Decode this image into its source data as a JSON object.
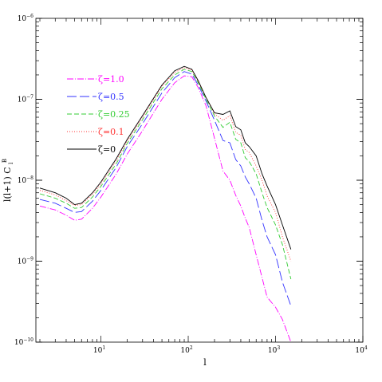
{
  "chart_data": {
    "type": "line",
    "title": "",
    "xlabel": "l",
    "ylabel": "l(l+1) C_l^B",
    "ylabel_parts": {
      "main": "l(l+1) C",
      "sub": "l",
      "sup": "B"
    },
    "x_scale": "log",
    "y_scale": "log",
    "xlim": [
      1.8,
      10000
    ],
    "ylim": [
      1e-10,
      1e-06
    ],
    "grid": false,
    "legend_position": "upper-left",
    "x_ticks": [
      {
        "value": 10,
        "base": "10",
        "exp": "1"
      },
      {
        "value": 100,
        "base": "10",
        "exp": "2"
      },
      {
        "value": 1000,
        "base": "10",
        "exp": "3"
      },
      {
        "value": 10000,
        "base": "10",
        "exp": "4"
      }
    ],
    "y_ticks": [
      {
        "value": 1e-10,
        "base": "10",
        "exp": "−10"
      },
      {
        "value": 1e-09,
        "base": "10",
        "exp": "−9"
      },
      {
        "value": 1e-08,
        "base": "10",
        "exp": "−8"
      },
      {
        "value": 1e-07,
        "base": "10",
        "exp": "−7"
      },
      {
        "value": 1e-06,
        "base": "10",
        "exp": "−6"
      }
    ],
    "series": [
      {
        "name": "ζ=1.0",
        "color": "#ff00ff",
        "dash": "8,2,1,2",
        "x": [
          2,
          3,
          4,
          5,
          6,
          8,
          10,
          15,
          20,
          30,
          50,
          70,
          90,
          110,
          130,
          160,
          200,
          250,
          300,
          350,
          400,
          450,
          500,
          600,
          700,
          800,
          1000,
          1200,
          1500
        ],
        "y": [
          4.8e-09,
          4.3e-09,
          3.7e-09,
          3.2e-09,
          3.3e-09,
          4.5e-09,
          6.2e-09,
          1.2e-08,
          2.1e-08,
          4.1e-08,
          1e-07,
          1.6e-07,
          1.95e-07,
          1.9e-07,
          1.4e-07,
          8.3e-08,
          3.3e-08,
          1.3e-08,
          1e-08,
          6.5e-09,
          4.8e-09,
          3.4e-09,
          2.6e-09,
          1.2e-09,
          6.3e-10,
          3.6e-10,
          2.7e-10,
          1.9e-10,
          1e-10
        ]
      },
      {
        "name": "ζ=0.5",
        "color": "#3333ff",
        "dash": "12,4",
        "x": [
          2,
          3,
          4,
          5,
          6,
          8,
          10,
          15,
          20,
          30,
          50,
          70,
          90,
          110,
          130,
          160,
          200,
          250,
          300,
          350,
          400,
          450,
          500,
          600,
          700,
          800,
          1000,
          1200,
          1500
        ],
        "y": [
          5.8e-09,
          5.2e-09,
          4.5e-09,
          4e-09,
          4.1e-09,
          5.5e-09,
          7.5e-09,
          1.45e-08,
          2.6e-08,
          5e-08,
          1.2e-07,
          1.85e-07,
          2.2e-07,
          2.05e-07,
          1.5e-07,
          9.5e-08,
          5.5e-08,
          3.1e-08,
          2.9e-08,
          1.8e-08,
          1.5e-08,
          1.1e-08,
          9e-09,
          6e-09,
          3.2e-09,
          2e-09,
          1.2e-09,
          5.5e-10,
          2.8e-10
        ]
      },
      {
        "name": "ζ=0.25",
        "color": "#33cc33",
        "dash": "6,3",
        "x": [
          2,
          3,
          4,
          5,
          6,
          8,
          10,
          15,
          20,
          30,
          50,
          70,
          90,
          110,
          130,
          160,
          200,
          250,
          300,
          350,
          400,
          450,
          500,
          600,
          700,
          800,
          1000,
          1200,
          1500
        ],
        "y": [
          6.8e-09,
          6e-09,
          5.2e-09,
          4.5e-09,
          4.6e-09,
          6.2e-09,
          8.4e-09,
          1.6e-08,
          2.85e-08,
          5.6e-08,
          1.35e-07,
          2e-07,
          2.35e-07,
          2.2e-07,
          1.6e-07,
          1e-07,
          6.2e-08,
          4.5e-08,
          5.2e-08,
          3.2e-08,
          2.9e-08,
          1.9e-08,
          1.7e-08,
          1.2e-08,
          7e-09,
          4.6e-09,
          2.8e-09,
          1.6e-09,
          6e-10
        ]
      },
      {
        "name": "ζ=0.1",
        "color": "#ff3333",
        "dash": "1,2",
        "x": [
          2,
          3,
          4,
          5,
          6,
          8,
          10,
          15,
          20,
          30,
          50,
          70,
          90,
          110,
          130,
          160,
          200,
          250,
          300,
          350,
          400,
          450,
          500,
          600,
          700,
          800,
          1000,
          1200,
          1500
        ],
        "y": [
          7.5e-09,
          6.6e-09,
          5.6e-09,
          4.9e-09,
          5e-09,
          6.7e-09,
          9e-09,
          1.75e-08,
          3.05e-08,
          6e-08,
          1.45e-07,
          2.15e-07,
          2.45e-07,
          2.3e-07,
          1.65e-07,
          1.05e-07,
          6.6e-08,
          5.5e-08,
          6.3e-08,
          3.9e-08,
          3.6e-08,
          2.4e-08,
          2.2e-08,
          1.5e-08,
          1e-08,
          6.4e-09,
          4e-09,
          2e-09,
          1e-09
        ]
      },
      {
        "name": "ζ=0",
        "color": "#000000",
        "dash": "",
        "x": [
          2,
          3,
          4,
          5,
          6,
          8,
          10,
          15,
          20,
          30,
          50,
          70,
          90,
          110,
          130,
          160,
          200,
          250,
          300,
          350,
          400,
          450,
          500,
          600,
          700,
          800,
          1000,
          1200,
          1500
        ],
        "y": [
          8e-09,
          7e-09,
          6e-09,
          5e-09,
          5.2e-09,
          7e-09,
          9.5e-09,
          1.85e-08,
          3.2e-08,
          6.3e-08,
          1.5e-07,
          2.25e-07,
          2.55e-07,
          2.35e-07,
          1.7e-07,
          1.05e-07,
          6.8e-08,
          6.5e-08,
          7.2e-08,
          4.6e-08,
          4.2e-08,
          2.9e-08,
          2.6e-08,
          2e-08,
          1.2e-08,
          8.5e-09,
          5e-09,
          2.8e-09,
          1.4e-09
        ]
      }
    ]
  }
}
